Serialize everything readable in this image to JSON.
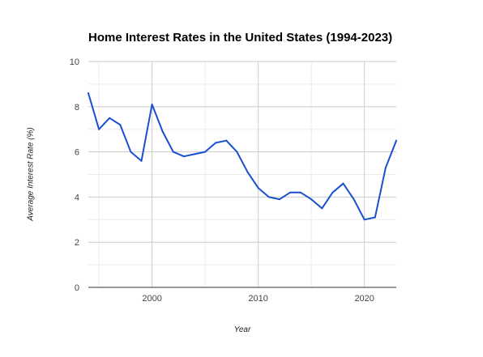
{
  "chart_data": {
    "type": "line",
    "title": "Home Interest Rates in the United States (1994-2023)",
    "xlabel": "Year",
    "ylabel": "Average Interest Rate (%)",
    "xlim": [
      1994,
      2023
    ],
    "ylim": [
      0,
      10
    ],
    "x_ticks": [
      "2000",
      "2010",
      "2020"
    ],
    "y_ticks": [
      "0",
      "2",
      "4",
      "6",
      "8",
      "10"
    ],
    "grid": true,
    "legend": "none",
    "series": [
      {
        "color": "#1a4fd1",
        "x": [
          1994,
          1995,
          1996,
          1997,
          1998,
          1999,
          2000,
          2001,
          2002,
          2003,
          2004,
          2005,
          2006,
          2007,
          2008,
          2009,
          2010,
          2011,
          2012,
          2013,
          2014,
          2015,
          2016,
          2017,
          2018,
          2019,
          2020,
          2021,
          2022,
          2023
        ],
        "y": [
          8.6,
          7.0,
          7.5,
          7.2,
          6.0,
          5.6,
          8.1,
          6.9,
          6.0,
          5.8,
          5.9,
          6.0,
          6.4,
          6.5,
          6.0,
          5.1,
          4.4,
          4.0,
          3.9,
          4.2,
          4.2,
          3.9,
          3.5,
          4.2,
          4.6,
          3.9,
          3.0,
          3.1,
          5.3,
          6.5
        ]
      }
    ]
  }
}
